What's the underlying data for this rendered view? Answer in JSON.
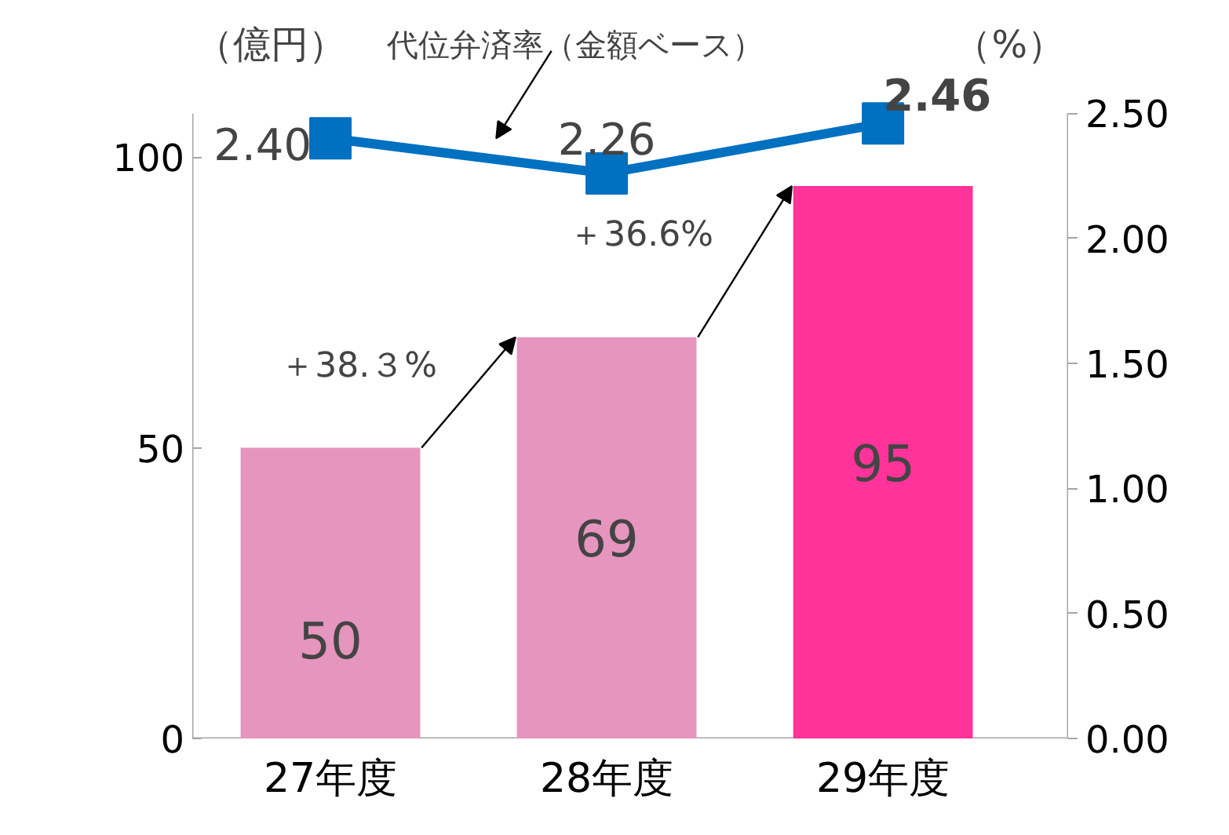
{
  "chart_data": {
    "type": "bar",
    "categories": [
      "27年度",
      "28年度",
      "29年度"
    ],
    "ylabel": "（億円）",
    "y2label": "（%）",
    "ylim": [
      0,
      107.5
    ],
    "yticks": [
      0,
      50,
      100
    ],
    "y2lim": [
      0,
      2.5
    ],
    "y2ticks": [
      "0.00",
      "0.50",
      "1.00",
      "1.50",
      "2.00",
      "2.50"
    ],
    "series": [
      {
        "colors": [
          "#e595be",
          "#e595be",
          "#ff3399"
        ],
        "values": [
          50,
          69,
          95
        ]
      },
      {
        "type": "line",
        "name": "代位弁済率（金額ベース）",
        "axis": "y2",
        "color": "#0070c0",
        "values": [
          2.4,
          2.26,
          2.46
        ],
        "value_labels": [
          "2.40",
          "2.26",
          "2.46"
        ]
      }
    ],
    "annotations": [
      "＋38.３%",
      "＋36.6%"
    ],
    "data_labels": true,
    "marker": "square",
    "grid": false,
    "legend": false
  }
}
